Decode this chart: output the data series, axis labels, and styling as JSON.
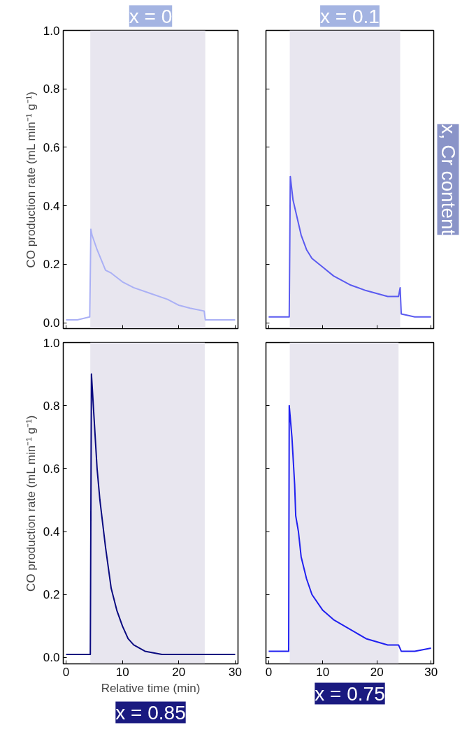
{
  "chart_data": [
    {
      "type": "line",
      "title": "x = 0",
      "ylabel": "CO production rate (mL min⁻¹ g⁻¹)",
      "xlim": [
        -0.5,
        30.5
      ],
      "ylim": [
        -0.02,
        1.0
      ],
      "xticks": [
        {
          "value": 0,
          "label": null
        },
        {
          "value": 10,
          "label": null
        },
        {
          "value": 20,
          "label": null
        },
        {
          "value": 30,
          "label": null
        }
      ],
      "yticks": [
        {
          "value": 0,
          "label": "0.0"
        },
        {
          "value": 0.2,
          "label": "0.2"
        },
        {
          "value": 0.4,
          "label": "0.4"
        },
        {
          "value": 0.6,
          "label": "0.6"
        },
        {
          "value": 0.8,
          "label": "0.8"
        },
        {
          "value": 1.0,
          "label": "1.0"
        }
      ],
      "tick_labels": "y",
      "grid": false,
      "bands": [
        {
          "axis": "x",
          "from": 4.3,
          "to": 24.7,
          "color": "#e8e6ef"
        }
      ],
      "x": [
        0,
        2,
        4.2,
        4.4,
        4.6,
        5.5,
        7,
        8,
        10,
        12,
        15,
        18,
        20,
        22,
        24.5,
        24.7,
        27,
        30
      ],
      "series": [
        {
          "color": "#aab0f5",
          "values": [
            0.01,
            0.01,
            0.02,
            0.32,
            0.3,
            0.25,
            0.18,
            0.17,
            0.14,
            0.12,
            0.1,
            0.08,
            0.06,
            0.05,
            0.04,
            0.01,
            0.01,
            0.01
          ]
        }
      ]
    },
    {
      "type": "line",
      "title": "x = 0.1",
      "annotations": [
        "x, Cr content"
      ],
      "xlim": [
        -0.5,
        30.5
      ],
      "ylim": [
        -0.02,
        1.0
      ],
      "xticks": [
        {
          "value": 0,
          "label": null
        },
        {
          "value": 10,
          "label": null
        },
        {
          "value": 20,
          "label": null
        },
        {
          "value": 30,
          "label": null
        }
      ],
      "yticks": [
        {
          "value": 0,
          "label": null
        },
        {
          "value": 0.2,
          "label": null
        },
        {
          "value": 0.4,
          "label": null
        },
        {
          "value": 0.6,
          "label": null
        },
        {
          "value": 0.8,
          "label": null
        },
        {
          "value": 1.0,
          "label": null
        }
      ],
      "tick_labels": false,
      "grid": false,
      "bands": [
        {
          "axis": "x",
          "from": 3.9,
          "to": 24.3,
          "color": "#e8e6ef"
        }
      ],
      "x": [
        0,
        2,
        3.8,
        4.0,
        4.5,
        5,
        6,
        7,
        8,
        10,
        12,
        15,
        18,
        20,
        22,
        24,
        24.3,
        24.5,
        27,
        30
      ],
      "series": [
        {
          "color": "#5a5af0",
          "values": [
            0.02,
            0.02,
            0.02,
            0.5,
            0.42,
            0.38,
            0.3,
            0.25,
            0.22,
            0.19,
            0.16,
            0.13,
            0.11,
            0.1,
            0.09,
            0.09,
            0.12,
            0.03,
            0.02,
            0.02
          ]
        }
      ]
    },
    {
      "type": "line",
      "title": "x = 0.85",
      "xlabel": "Relative time (min)",
      "ylabel": "CO production rate (mL min⁻¹ g⁻¹)",
      "xlim": [
        -0.5,
        30.5
      ],
      "ylim": [
        -0.02,
        1.0
      ],
      "xticks": [
        0,
        10,
        20,
        30
      ],
      "yticks": [
        {
          "value": 0,
          "label": "0.0"
        },
        {
          "value": 0.2,
          "label": "0.2"
        },
        {
          "value": 0.4,
          "label": "0.4"
        },
        {
          "value": 0.6,
          "label": "0.6"
        },
        {
          "value": 0.8,
          "label": "0.8"
        },
        {
          "value": 1.0,
          "label": "1.0"
        }
      ],
      "grid": false,
      "bands": [
        {
          "axis": "x",
          "from": 4.3,
          "to": 24.6,
          "color": "#e8e6ef"
        }
      ],
      "x": [
        0,
        2,
        4.3,
        4.5,
        5,
        5.5,
        6,
        7,
        8,
        9,
        10,
        11,
        12,
        14,
        17,
        20,
        25,
        30
      ],
      "series": [
        {
          "color": "#0a0a80",
          "values": [
            0.01,
            0.01,
            0.01,
            0.9,
            0.75,
            0.6,
            0.5,
            0.35,
            0.22,
            0.15,
            0.1,
            0.06,
            0.04,
            0.02,
            0.01,
            0.01,
            0.01,
            0.01
          ]
        }
      ]
    },
    {
      "type": "line",
      "title": "x = 0.75",
      "xlim": [
        -0.5,
        30.5
      ],
      "ylim": [
        -0.02,
        1.0
      ],
      "xticks": [
        0,
        10,
        20,
        30
      ],
      "yticks": [
        {
          "value": 0,
          "label": null
        },
        {
          "value": 0.2,
          "label": null
        },
        {
          "value": 0.4,
          "label": null
        },
        {
          "value": 0.6,
          "label": null
        },
        {
          "value": 0.8,
          "label": null
        },
        {
          "value": 1.0,
          "label": null
        }
      ],
      "tick_labels": "x",
      "grid": false,
      "bands": [
        {
          "axis": "x",
          "from": 3.9,
          "to": 24.0,
          "color": "#e8e6ef"
        }
      ],
      "x": [
        0,
        2,
        3.7,
        3.8,
        4.3,
        4.8,
        5,
        5.5,
        6,
        7,
        8,
        10,
        12,
        15,
        18,
        20,
        22,
        24,
        24.5,
        27,
        30
      ],
      "series": [
        {
          "color": "#2020f0",
          "values": [
            0.02,
            0.02,
            0.02,
            0.8,
            0.7,
            0.55,
            0.45,
            0.4,
            0.32,
            0.25,
            0.2,
            0.15,
            0.12,
            0.09,
            0.06,
            0.05,
            0.04,
            0.04,
            0.02,
            0.02,
            0.03
          ]
        }
      ]
    }
  ]
}
